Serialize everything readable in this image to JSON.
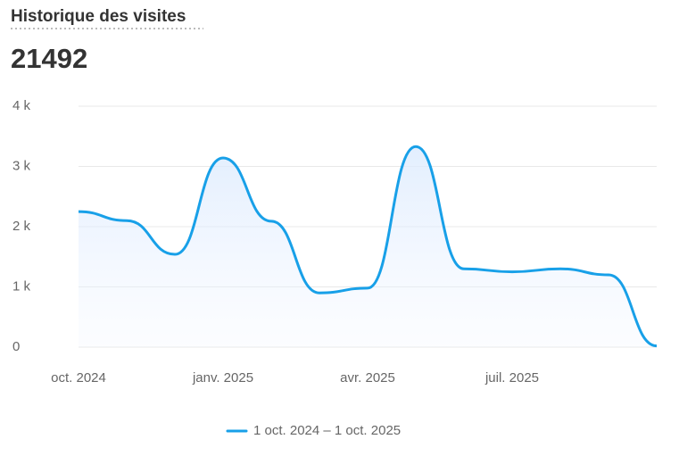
{
  "chart_data": {
    "type": "line",
    "title": "Historique des visites",
    "total": 21492,
    "categories": [
      "oct. 2024",
      null,
      null,
      "janv. 2025",
      null,
      null,
      "avr. 2025",
      null,
      null,
      "juil. 2025",
      null,
      null,
      null
    ],
    "series": [
      {
        "name": "1 oct. 2024 – 1 oct. 2025",
        "color": "#18a0e8",
        "values": [
          2250,
          2100,
          1540,
          3140,
          2090,
          900,
          980,
          3330,
          1300,
          1250,
          1300,
          1200,
          20
        ]
      }
    ],
    "ylim": [
      0,
      4000
    ],
    "yticks": [
      0,
      {
        "value": 1000,
        "label": "1 k"
      },
      {
        "value": 2000,
        "label": "2 k"
      },
      {
        "value": 3000,
        "label": "3 k"
      },
      {
        "value": 4000,
        "label": "4 k"
      }
    ],
    "grid": true
  }
}
